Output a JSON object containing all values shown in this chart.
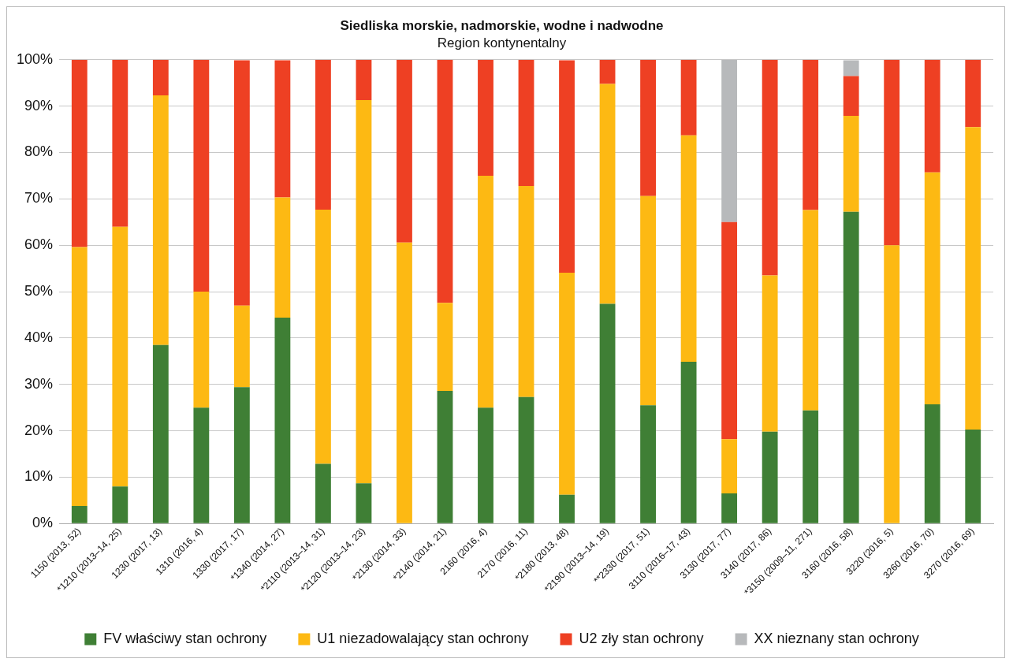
{
  "chart_data": {
    "type": "bar",
    "title": "Siedliska morskie, nadmorskie, wodne i nadwodne",
    "subtitle": "Region kontynentalny",
    "stacked": true,
    "grid": "y",
    "legend": "bottom",
    "categories": [
      "1150 (2013, 52)",
      "*1210 (2013–14, 25)",
      "1230 (2017, 13)",
      "1310 (2016, 4)",
      "1330 (2017, 17)",
      "*1340 (2014, 27)",
      "*2110 (2013–14, 31)",
      "*2120 (2013–14, 23)",
      "*2130 (2014, 33)",
      "*2140 (2014, 21)",
      "2160 (2016, 4)",
      "2170 (2016, 11)",
      "*2180 (2013, 48)",
      "*2190 (2013–14, 19)",
      "**2330 (2017, 51)",
      "3110 (2016–17, 43)",
      "3130 (2017, 77)",
      "3140 (2017, 86)",
      "*3150 (2009–11, 271)",
      "3160 (2016, 58)",
      "3220 (2016, 5)",
      "3260 (2016, 70)",
      "3270 (2016, 69)"
    ],
    "ylim": [
      0,
      100
    ],
    "yticks": [
      {
        "value": 0,
        "label": "0%"
      },
      {
        "value": 10,
        "label": "10%"
      },
      {
        "value": 20,
        "label": "20%"
      },
      {
        "value": 30,
        "label": "30%"
      },
      {
        "value": 40,
        "label": "40%"
      },
      {
        "value": 50,
        "label": "50%"
      },
      {
        "value": 60,
        "label": "60%"
      },
      {
        "value": 70,
        "label": "70%"
      },
      {
        "value": 80,
        "label": "80%"
      },
      {
        "value": 90,
        "label": "90%"
      },
      {
        "value": 100,
        "label": "100%"
      }
    ],
    "series": [
      {
        "name": "FV właściwy stan ochrony",
        "color": "#3f7f35",
        "values": [
          3.8,
          8,
          38.5,
          25,
          29.4,
          44.4,
          12.9,
          8.7,
          0,
          28.6,
          25,
          27.3,
          6.2,
          47.4,
          25.5,
          34.9,
          6.5,
          19.8,
          24.4,
          67.2,
          0,
          25.7,
          20.3
        ]
      },
      {
        "name": "U1 niezadowalający stan ochrony",
        "color": "#fdb913",
        "values": [
          55.8,
          56,
          53.8,
          25,
          17.6,
          25.9,
          54.8,
          82.6,
          60.6,
          19,
          50,
          45.5,
          47.9,
          47.4,
          45.1,
          48.8,
          11.7,
          33.7,
          43.2,
          20.7,
          60,
          50,
          65.2
        ]
      },
      {
        "name": "U2 zły stan ochrony",
        "color": "#ee4023",
        "values": [
          40.4,
          36,
          7.7,
          50,
          52.9,
          29.6,
          32.3,
          8.7,
          39.4,
          52.4,
          25,
          27.2,
          45.8,
          5.2,
          29.4,
          16.3,
          46.8,
          46.5,
          32.4,
          8.6,
          40,
          24.3,
          14.5
        ]
      },
      {
        "name": "XX nieznany stan ochrony",
        "color": "#b7b9bb",
        "values": [
          0,
          0,
          0,
          0,
          0,
          0,
          0,
          0,
          0,
          0,
          0,
          0,
          0,
          0,
          0,
          0,
          35,
          0,
          0,
          3.4,
          0,
          0,
          0
        ]
      }
    ]
  }
}
